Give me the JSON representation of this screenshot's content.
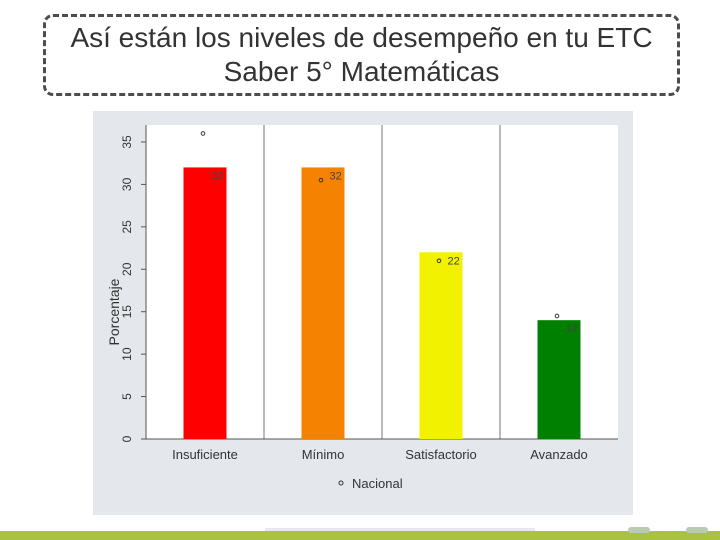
{
  "slide": {
    "title_line1": "Así están los niveles de desempeño en tu ETC",
    "title_line2": "Saber 5° Matemáticas"
  },
  "chart_data": {
    "type": "bar",
    "categories": [
      "Insuficiente",
      "Mínimo",
      "Satisfactorio",
      "Avanzado"
    ],
    "values": [
      32,
      32,
      22,
      14
    ],
    "value_labels": [
      "32",
      "32",
      "22",
      "14"
    ],
    "bar_colors": [
      "#ff0000",
      "#f58200",
      "#f2f200",
      "#008000"
    ],
    "series": [
      {
        "name": "Nacional",
        "type": "scatter",
        "values": [
          36,
          30.5,
          21,
          14.5
        ]
      }
    ],
    "ylabel": "Porcentaje",
    "ylim": [
      0,
      37
    ],
    "yticks": [
      0,
      5,
      10,
      15,
      20,
      25,
      30,
      35
    ],
    "plot_background": "#e4e8ed",
    "gridlines_vertical": true,
    "legend_position": "bottom"
  }
}
